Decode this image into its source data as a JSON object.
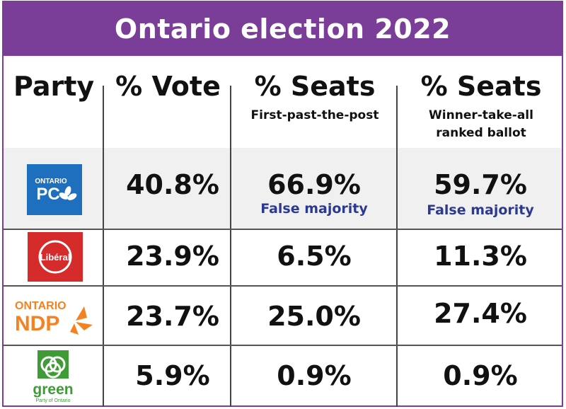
{
  "title": "Ontario election 2022",
  "headers": {
    "party": "Party",
    "vote": "% Vote",
    "fptp": "% Seats",
    "fptp_sub": "First-past-the-post",
    "wta": "% Seats",
    "wta_sub_1": "Winner-take-all",
    "wta_sub_2": "ranked ballot"
  },
  "logos": {
    "pc_line1": "ONTARIO",
    "pc_line2": "PC",
    "liberal": "Libéral",
    "ndp_line1": "ONTARIO",
    "ndp_line2": "NDP",
    "green_word": "green",
    "green_sub": "Party of Ontario"
  },
  "colors": {
    "banner": "#7a3e98",
    "pc_blue": "#1f6fbf",
    "liberal_red": "#d62b2b",
    "ndp_orange": "#f58220",
    "green": "#3f9b35",
    "note_blue": "#2b3990"
  },
  "chart_data": {
    "type": "table",
    "title": "Ontario election 2022",
    "columns": [
      "Party",
      "% Vote",
      "% Seats First-past-the-post",
      "% Seats Winner-take-all ranked ballot"
    ],
    "rows": [
      {
        "party": "Ontario PC",
        "vote": "40.8%",
        "fptp": "66.9%",
        "fptp_note": "False majority",
        "wta": "59.7%",
        "wta_note": "False majority"
      },
      {
        "party": "Liberal",
        "vote": "23.9%",
        "fptp": "6.5%",
        "fptp_note": "",
        "wta": "11.3%",
        "wta_note": ""
      },
      {
        "party": "Ontario NDP",
        "vote": "23.7%",
        "fptp": "25.0%",
        "fptp_note": "",
        "wta": "27.4%",
        "wta_note": ""
      },
      {
        "party": "Green Party of Ontario",
        "vote": "5.9%",
        "fptp": "0.9%",
        "fptp_note": "",
        "wta": "0.9%",
        "wta_note": ""
      }
    ]
  }
}
